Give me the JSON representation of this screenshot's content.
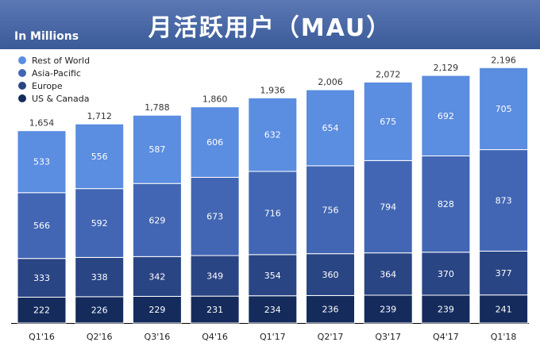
{
  "header": {
    "title": "月活跃用户（MAU）",
    "subtitle": "In Millions"
  },
  "colors": {
    "header_bg": "#3b5998",
    "rest_of_world": "#5b8de0",
    "asia_pacific": "#4266b4",
    "europe": "#2a4584",
    "us_canada": "#142b5c",
    "axis": "#000000",
    "label_dark": "#ffffff",
    "total_label": "#333333"
  },
  "chart_data": {
    "type": "bar",
    "stacked": true,
    "title": "月活跃用户（MAU）",
    "ylabel": "In Millions",
    "xlabel": "",
    "legend_position": "top-left",
    "categories": [
      "Q1'16",
      "Q2'16",
      "Q3'16",
      "Q4'16",
      "Q1'17",
      "Q2'17",
      "Q3'17",
      "Q4'17",
      "Q1'18"
    ],
    "totals": [
      1654,
      1712,
      1788,
      1860,
      1936,
      2006,
      2072,
      2129,
      2196
    ],
    "totals_display": [
      "1,654",
      "1,712",
      "1,788",
      "1,860",
      "1,936",
      "2,006",
      "2,072",
      "2,129",
      "2,196"
    ],
    "series": [
      {
        "name": "US & Canada",
        "color_key": "us_canada",
        "values": [
          222,
          226,
          229,
          231,
          234,
          236,
          239,
          239,
          241
        ]
      },
      {
        "name": "Europe",
        "color_key": "europe",
        "values": [
          333,
          338,
          342,
          349,
          354,
          360,
          364,
          370,
          377
        ]
      },
      {
        "name": "Asia-Pacific",
        "color_key": "asia_pacific",
        "values": [
          566,
          592,
          629,
          673,
          716,
          756,
          794,
          828,
          873
        ]
      },
      {
        "name": "Rest of World",
        "color_key": "rest_of_world",
        "values": [
          533,
          556,
          587,
          606,
          632,
          654,
          675,
          692,
          705
        ]
      }
    ],
    "legend_order": [
      "Rest of World",
      "Asia-Pacific",
      "Europe",
      "US & Canada"
    ]
  }
}
